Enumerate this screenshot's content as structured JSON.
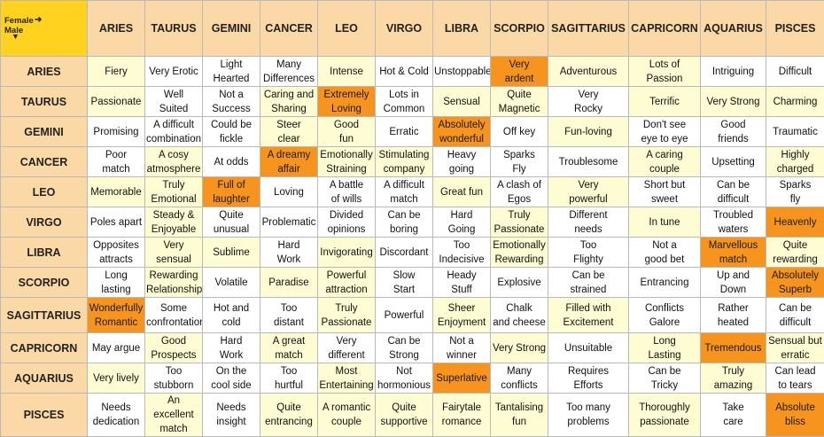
{
  "corner": {
    "female_label": "Female",
    "male_label": "Male",
    "female_arrow_icon": "arrow-right-icon",
    "male_arrow_icon": "arrow-down-icon"
  },
  "signs": [
    "ARIES",
    "TAURUS",
    "GEMINI",
    "CANCER",
    "LEO",
    "VIRGO",
    "LIBRA",
    "SCORPIO",
    "SAGITTARIUS",
    "CAPRICORN",
    "AQUARIUS",
    "PISCES"
  ],
  "colors": {
    "header": "#fbd9a6",
    "corner": "#ffd21f",
    "white": "#ffffff",
    "light_yellow": "#fdfcd2",
    "highlight_orange": "#f7941d"
  },
  "rows": [
    {
      "sign": "ARIES",
      "cells": [
        {
          "t": "Fiery",
          "c": "y"
        },
        {
          "t": "Very Erotic",
          "c": "w"
        },
        {
          "t": "Light\nHearted",
          "c": "w"
        },
        {
          "t": "Many\nDifferences",
          "c": "w"
        },
        {
          "t": "Intense",
          "c": "y"
        },
        {
          "t": "Hot & Cold",
          "c": "w"
        },
        {
          "t": "Unstoppable",
          "c": "w"
        },
        {
          "t": "Very\nardent",
          "c": "o"
        },
        {
          "t": "Adventurous",
          "c": "y"
        },
        {
          "t": "Lots of\nPassion",
          "c": "y"
        },
        {
          "t": "Intriguing",
          "c": "w"
        },
        {
          "t": "Difficult",
          "c": "w"
        }
      ]
    },
    {
      "sign": "TAURUS",
      "cells": [
        {
          "t": "Passionate",
          "c": "y"
        },
        {
          "t": "Well\nSuited",
          "c": "w"
        },
        {
          "t": "Not a\nSuccess",
          "c": "w"
        },
        {
          "t": "Caring and\nSharing",
          "c": "y"
        },
        {
          "t": "Extremely\nLoving",
          "c": "o"
        },
        {
          "t": "Lots in\nCommon",
          "c": "w"
        },
        {
          "t": "Sensual",
          "c": "y"
        },
        {
          "t": "Quite\nMagnetic",
          "c": "y"
        },
        {
          "t": "Very\nRocky",
          "c": "w"
        },
        {
          "t": "Terrific",
          "c": "y"
        },
        {
          "t": "Very Strong",
          "c": "y"
        },
        {
          "t": "Charming",
          "c": "y"
        }
      ]
    },
    {
      "sign": "GEMINI",
      "cells": [
        {
          "t": "Promising",
          "c": "w"
        },
        {
          "t": "A difficult\ncombination",
          "c": "w"
        },
        {
          "t": "Could be\nfickle",
          "c": "w"
        },
        {
          "t": "Steer\nclear",
          "c": "y"
        },
        {
          "t": "Good\nfun",
          "c": "y"
        },
        {
          "t": "Erratic",
          "c": "w"
        },
        {
          "t": "Absolutely\nwonderful",
          "c": "o"
        },
        {
          "t": "Off key",
          "c": "w"
        },
        {
          "t": "Fun-loving",
          "c": "y"
        },
        {
          "t": "Don't see\neye to eye",
          "c": "w"
        },
        {
          "t": "Good\nfriends",
          "c": "w"
        },
        {
          "t": "Traumatic",
          "c": "w"
        }
      ]
    },
    {
      "sign": "CANCER",
      "cells": [
        {
          "t": "Poor\nmatch",
          "c": "w"
        },
        {
          "t": "A cosy\natmosphere",
          "c": "y"
        },
        {
          "t": "At odds",
          "c": "w"
        },
        {
          "t": "A dreamy\naffair",
          "c": "o"
        },
        {
          "t": "Emotionally\nStraining",
          "c": "y"
        },
        {
          "t": "Stimulating\ncompany",
          "c": "y"
        },
        {
          "t": "Heavy\ngoing",
          "c": "w"
        },
        {
          "t": "Sparks\nFly",
          "c": "w"
        },
        {
          "t": "Troublesome",
          "c": "w"
        },
        {
          "t": "A caring\ncouple",
          "c": "y"
        },
        {
          "t": "Upsetting",
          "c": "w"
        },
        {
          "t": "Highly\ncharged",
          "c": "y"
        }
      ]
    },
    {
      "sign": "LEO",
      "cells": [
        {
          "t": "Memorable",
          "c": "y"
        },
        {
          "t": "Truly\nEmotional",
          "c": "y"
        },
        {
          "t": "Full of\nlaughter",
          "c": "o"
        },
        {
          "t": "Loving",
          "c": "w"
        },
        {
          "t": "A battle\nof wills",
          "c": "w"
        },
        {
          "t": "A difficult\nmatch",
          "c": "w"
        },
        {
          "t": "Great fun",
          "c": "y"
        },
        {
          "t": "A clash of\nEgos",
          "c": "w"
        },
        {
          "t": "Very\npowerful",
          "c": "y"
        },
        {
          "t": "Short but\nsweet",
          "c": "w"
        },
        {
          "t": "Can be\ndifficult",
          "c": "w"
        },
        {
          "t": "Sparks\nfly",
          "c": "w"
        }
      ]
    },
    {
      "sign": "VIRGO",
      "cells": [
        {
          "t": "Poles apart",
          "c": "w"
        },
        {
          "t": "Steady &\nEnjoyable",
          "c": "y"
        },
        {
          "t": "Quite\nunusual",
          "c": "w"
        },
        {
          "t": "Problematic",
          "c": "w"
        },
        {
          "t": "Divided\nopinions",
          "c": "w"
        },
        {
          "t": "Can be\nboring",
          "c": "w"
        },
        {
          "t": "Hard\nGoing",
          "c": "w"
        },
        {
          "t": "Truly\nPassionate",
          "c": "y"
        },
        {
          "t": "Different\nneeds",
          "c": "w"
        },
        {
          "t": "In tune",
          "c": "y"
        },
        {
          "t": "Troubled\nwaters",
          "c": "w"
        },
        {
          "t": "Heavenly",
          "c": "o"
        }
      ]
    },
    {
      "sign": "LIBRA",
      "cells": [
        {
          "t": "Opposites\nattracts",
          "c": "w"
        },
        {
          "t": "Very\nsensual",
          "c": "y"
        },
        {
          "t": "Sublime",
          "c": "y"
        },
        {
          "t": "Hard\nWork",
          "c": "w"
        },
        {
          "t": "Invigorating",
          "c": "y"
        },
        {
          "t": "Discordant",
          "c": "w"
        },
        {
          "t": "Too\nIndecisive",
          "c": "w"
        },
        {
          "t": "Emotionally\nRewarding",
          "c": "y"
        },
        {
          "t": "Too\nFlighty",
          "c": "w"
        },
        {
          "t": "Not a\ngood bet",
          "c": "w"
        },
        {
          "t": "Marvellous\nmatch",
          "c": "o"
        },
        {
          "t": "Quite\nrewarding",
          "c": "y"
        }
      ]
    },
    {
      "sign": "SCORPIO",
      "cells": [
        {
          "t": "Long lasting",
          "c": "w"
        },
        {
          "t": "Rewarding\nRelationship",
          "c": "y"
        },
        {
          "t": "Volatile",
          "c": "w"
        },
        {
          "t": "Paradise",
          "c": "y"
        },
        {
          "t": "Powerful\nattraction",
          "c": "y"
        },
        {
          "t": "Slow\nStart",
          "c": "w"
        },
        {
          "t": "Heady\nStuff",
          "c": "w"
        },
        {
          "t": "Explosive",
          "c": "w"
        },
        {
          "t": "Can be\nstrained",
          "c": "w"
        },
        {
          "t": "Entrancing",
          "c": "w"
        },
        {
          "t": "Up and\nDown",
          "c": "w"
        },
        {
          "t": "Absolutely\nSuperb",
          "c": "o"
        }
      ]
    },
    {
      "sign": "SAGITTARIUS",
      "tall": true,
      "cells": [
        {
          "t": "Wonderfully\nRomantic",
          "c": "o"
        },
        {
          "t": "Some\nconfrontation",
          "c": "w"
        },
        {
          "t": "Hot and\ncold",
          "c": "w"
        },
        {
          "t": "Too\ndistant",
          "c": "w"
        },
        {
          "t": "Truly\nPassionate",
          "c": "y"
        },
        {
          "t": "Powerful",
          "c": "w"
        },
        {
          "t": "Sheer\nEnjoyment",
          "c": "y"
        },
        {
          "t": "Chalk\nand cheese",
          "c": "w"
        },
        {
          "t": "Filled with\nExcitement",
          "c": "y"
        },
        {
          "t": "Conflicts\nGalore",
          "c": "w"
        },
        {
          "t": "Rather\nheated",
          "c": "w"
        },
        {
          "t": "Can be\ndifficult",
          "c": "w"
        }
      ]
    },
    {
      "sign": "CAPRICORN",
      "cells": [
        {
          "t": "May argue",
          "c": "w"
        },
        {
          "t": "Good\nProspects",
          "c": "y"
        },
        {
          "t": "Hard\nWork",
          "c": "w"
        },
        {
          "t": "A great\nmatch",
          "c": "y"
        },
        {
          "t": "Very\ndifferent",
          "c": "w"
        },
        {
          "t": "Can be\nStrong",
          "c": "w"
        },
        {
          "t": "Not a\nwinner",
          "c": "w"
        },
        {
          "t": "Very Strong",
          "c": "y"
        },
        {
          "t": "Unsuitable",
          "c": "w"
        },
        {
          "t": "Long\nLasting",
          "c": "y"
        },
        {
          "t": "Tremendous",
          "c": "o"
        },
        {
          "t": "Sensual but\nerratic",
          "c": "y"
        }
      ]
    },
    {
      "sign": "AQUARIUS",
      "cells": [
        {
          "t": "Very lively",
          "c": "y"
        },
        {
          "t": "Too\nstubborn",
          "c": "w"
        },
        {
          "t": "On the\ncool side",
          "c": "w"
        },
        {
          "t": "Too\nhurtful",
          "c": "w"
        },
        {
          "t": "Most\nEntertaining",
          "c": "y"
        },
        {
          "t": "Not\nhormonious",
          "c": "w"
        },
        {
          "t": "Superlative",
          "c": "o"
        },
        {
          "t": "Many\nconflicts",
          "c": "w"
        },
        {
          "t": "Requires\nEfforts",
          "c": "w"
        },
        {
          "t": "Can be\nTricky",
          "c": "w"
        },
        {
          "t": "Truly\namazing",
          "c": "y"
        },
        {
          "t": "Can lead\nto tears",
          "c": "w"
        }
      ]
    },
    {
      "sign": "PISCES",
      "cells": [
        {
          "t": "Needs\ndedication",
          "c": "w"
        },
        {
          "t": "An excellent\nmatch",
          "c": "y"
        },
        {
          "t": "Needs\ninsight",
          "c": "w"
        },
        {
          "t": "Quite\nentrancing",
          "c": "y"
        },
        {
          "t": "A romantic\ncouple",
          "c": "y"
        },
        {
          "t": "Quite\nsupportive",
          "c": "y"
        },
        {
          "t": "Fairytale\nromance",
          "c": "y"
        },
        {
          "t": "Tantalising\nfun",
          "c": "y"
        },
        {
          "t": "Too many\nproblems",
          "c": "w"
        },
        {
          "t": "Thoroughly\npassionate",
          "c": "y"
        },
        {
          "t": "Take\ncare",
          "c": "w"
        },
        {
          "t": "Absolute\nbliss",
          "c": "o"
        }
      ]
    }
  ]
}
